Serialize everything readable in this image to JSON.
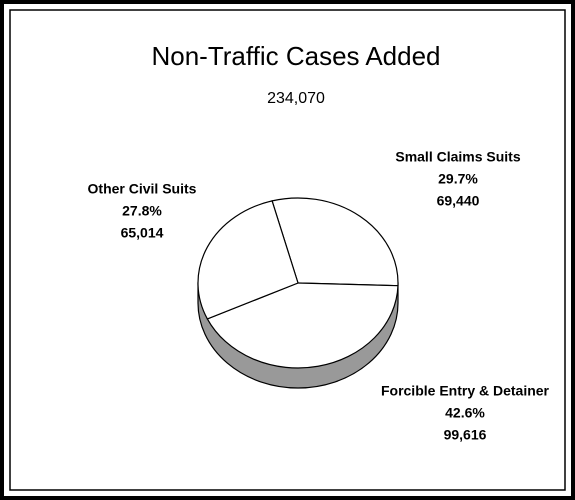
{
  "chart_data": {
    "type": "pie",
    "title": "Non-Traffic Cases Added",
    "subtitle": "234,070",
    "categories": [
      "Small Claims Suits",
      "Forcible Entry & Detainer",
      "Other Civil Suits"
    ],
    "values": [
      69440,
      99616,
      65014
    ],
    "value_labels": [
      "69,440",
      "99,616",
      "65,014"
    ],
    "percentages": [
      29.7,
      42.6,
      27.8
    ],
    "percentage_labels": [
      "29.7%",
      "42.6%",
      "27.8%"
    ],
    "color": "#ffffff",
    "side_color": "#999999"
  }
}
